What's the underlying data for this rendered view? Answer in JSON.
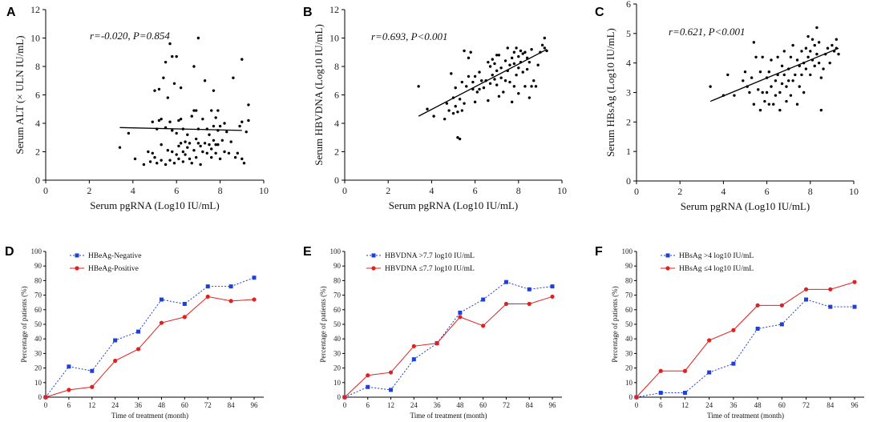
{
  "chart_data": [
    {
      "panel": "A",
      "type": "scatter",
      "xlabel": "Serum pgRNA (Log10 IU/mL)",
      "ylabel": "Serum ALT (× ULN IU/mL)",
      "xlim": [
        0,
        10
      ],
      "ylim": [
        0,
        12
      ],
      "xticks": [
        0,
        2,
        4,
        6,
        8,
        10
      ],
      "yticks": [
        0,
        2,
        4,
        6,
        8,
        10,
        12
      ],
      "annotation": {
        "r": "r=-0.020",
        "p": "P=0.854"
      },
      "fit": {
        "x": [
          3.4,
          9.0
        ],
        "y": [
          3.7,
          3.5
        ]
      },
      "points": [
        [
          3.4,
          2.3
        ],
        [
          3.8,
          3.3
        ],
        [
          4.1,
          1.5
        ],
        [
          4.5,
          1.1
        ],
        [
          4.7,
          2.0
        ],
        [
          4.8,
          1.3
        ],
        [
          4.9,
          1.9
        ],
        [
          4.9,
          4.1
        ],
        [
          5.0,
          6.3
        ],
        [
          5.0,
          1.6
        ],
        [
          5.1,
          3.6
        ],
        [
          5.1,
          1.2
        ],
        [
          5.2,
          4.2
        ],
        [
          5.2,
          6.4
        ],
        [
          5.3,
          2.5
        ],
        [
          5.3,
          1.4
        ],
        [
          5.3,
          4.3
        ],
        [
          5.4,
          7.2
        ],
        [
          5.5,
          8.3
        ],
        [
          5.5,
          3.7
        ],
        [
          5.5,
          1.1
        ],
        [
          5.6,
          5.8
        ],
        [
          5.6,
          2.1
        ],
        [
          5.7,
          9.6
        ],
        [
          5.7,
          4.1
        ],
        [
          5.7,
          1.4
        ],
        [
          5.8,
          8.7
        ],
        [
          5.8,
          3.5
        ],
        [
          5.8,
          2.0
        ],
        [
          5.9,
          6.8
        ],
        [
          5.9,
          1.2
        ],
        [
          6.0,
          8.7
        ],
        [
          6.0,
          3.3
        ],
        [
          6.0,
          1.8
        ],
        [
          6.1,
          4.2
        ],
        [
          6.1,
          2.4
        ],
        [
          6.1,
          1.5
        ],
        [
          6.2,
          6.5
        ],
        [
          6.2,
          4.3
        ],
        [
          6.2,
          2.6
        ],
        [
          6.3,
          3.6
        ],
        [
          6.3,
          2.0
        ],
        [
          6.3,
          1.3
        ],
        [
          6.4,
          2.7
        ],
        [
          6.4,
          1.8
        ],
        [
          6.5,
          3.2
        ],
        [
          6.5,
          2.3
        ],
        [
          6.6,
          1.5
        ],
        [
          6.6,
          2.6
        ],
        [
          6.7,
          4.5
        ],
        [
          6.7,
          1.2
        ],
        [
          6.8,
          4.9
        ],
        [
          6.8,
          8.0
        ],
        [
          6.8,
          2.1
        ],
        [
          6.9,
          2.9
        ],
        [
          6.9,
          1.6
        ],
        [
          6.9,
          4.9
        ],
        [
          7.0,
          10.0
        ],
        [
          7.0,
          3.6
        ],
        [
          7.0,
          2.6
        ],
        [
          7.1,
          2.4
        ],
        [
          7.1,
          1.1
        ],
        [
          7.2,
          4.3
        ],
        [
          7.2,
          2.0
        ],
        [
          7.3,
          7.0
        ],
        [
          7.3,
          2.6
        ],
        [
          7.4,
          3.6
        ],
        [
          7.4,
          1.9
        ],
        [
          7.5,
          2.5
        ],
        [
          7.5,
          3.2
        ],
        [
          7.6,
          4.9
        ],
        [
          7.6,
          2.2
        ],
        [
          7.6,
          1.6
        ],
        [
          7.7,
          6.3
        ],
        [
          7.7,
          3.8
        ],
        [
          7.7,
          2.8
        ],
        [
          7.8,
          4.4
        ],
        [
          7.8,
          2.5
        ],
        [
          7.8,
          1.9
        ],
        [
          7.9,
          3.5
        ],
        [
          7.9,
          4.9
        ],
        [
          7.9,
          2.5
        ],
        [
          8.0,
          1.5
        ],
        [
          8.0,
          3.8
        ],
        [
          8.1,
          2.8
        ],
        [
          8.2,
          4.0
        ],
        [
          8.2,
          2.0
        ],
        [
          8.3,
          3.4
        ],
        [
          8.4,
          1.9
        ],
        [
          8.5,
          2.7
        ],
        [
          8.6,
          7.2
        ],
        [
          8.7,
          1.6
        ],
        [
          8.8,
          1.9
        ],
        [
          8.9,
          3.8
        ],
        [
          9.0,
          4.1
        ],
        [
          9.0,
          8.5
        ],
        [
          9.0,
          1.5
        ],
        [
          9.1,
          1.2
        ],
        [
          9.2,
          3.4
        ],
        [
          9.3,
          5.3
        ],
        [
          9.3,
          4.2
        ]
      ]
    },
    {
      "panel": "B",
      "type": "scatter",
      "xlabel": "Serum pgRNA (Log10 IU/mL)",
      "ylabel": "Serum HBVDNA (Log10 IU/mL)",
      "xlim": [
        0,
        10
      ],
      "ylim": [
        0,
        12
      ],
      "xticks": [
        0,
        2,
        4,
        6,
        8,
        10
      ],
      "yticks": [
        0,
        2,
        4,
        6,
        8,
        10,
        12
      ],
      "annotation": {
        "r": "r=0.693",
        "p": "P<0.001"
      },
      "fit": {
        "x": [
          3.4,
          9.3
        ],
        "y": [
          4.5,
          9.2
        ]
      },
      "points": [
        [
          3.4,
          6.6
        ],
        [
          3.8,
          5.0
        ],
        [
          4.1,
          4.5
        ],
        [
          4.6,
          4.3
        ],
        [
          4.7,
          5.4
        ],
        [
          4.8,
          4.9
        ],
        [
          4.9,
          7.5
        ],
        [
          5.0,
          5.8
        ],
        [
          5.0,
          4.7
        ],
        [
          5.1,
          6.5
        ],
        [
          5.1,
          5.2
        ],
        [
          5.2,
          4.8
        ],
        [
          5.2,
          3.0
        ],
        [
          5.3,
          5.7
        ],
        [
          5.3,
          2.9
        ],
        [
          5.4,
          6.9
        ],
        [
          5.4,
          4.9
        ],
        [
          5.5,
          9.1
        ],
        [
          5.5,
          5.4
        ],
        [
          5.6,
          6.6
        ],
        [
          5.7,
          8.6
        ],
        [
          5.7,
          7.3
        ],
        [
          5.8,
          9.0
        ],
        [
          5.9,
          6.9
        ],
        [
          5.9,
          6.4
        ],
        [
          6.0,
          7.3
        ],
        [
          6.0,
          5.5
        ],
        [
          6.1,
          6.2
        ],
        [
          6.2,
          7.6
        ],
        [
          6.2,
          6.4
        ],
        [
          6.3,
          7.0
        ],
        [
          6.4,
          6.5
        ],
        [
          6.5,
          7.0
        ],
        [
          6.6,
          8.3
        ],
        [
          6.6,
          5.6
        ],
        [
          6.7,
          8.0
        ],
        [
          6.7,
          6.8
        ],
        [
          6.8,
          8.5
        ],
        [
          6.8,
          7.4
        ],
        [
          6.9,
          7.1
        ],
        [
          6.9,
          8.2
        ],
        [
          7.0,
          8.8
        ],
        [
          7.0,
          7.7
        ],
        [
          7.0,
          6.7
        ],
        [
          7.1,
          8.8
        ],
        [
          7.1,
          5.9
        ],
        [
          7.2,
          7.9
        ],
        [
          7.2,
          7.2
        ],
        [
          7.3,
          6.2
        ],
        [
          7.4,
          8.4
        ],
        [
          7.4,
          7.0
        ],
        [
          7.5,
          9.3
        ],
        [
          7.5,
          7.7
        ],
        [
          7.6,
          8.1
        ],
        [
          7.6,
          6.9
        ],
        [
          7.7,
          5.5
        ],
        [
          7.7,
          8.6
        ],
        [
          7.8,
          9.0
        ],
        [
          7.8,
          8.2
        ],
        [
          7.8,
          6.6
        ],
        [
          7.9,
          7.4
        ],
        [
          7.9,
          9.3
        ],
        [
          8.0,
          8.7
        ],
        [
          8.0,
          7.9
        ],
        [
          8.0,
          6.1
        ],
        [
          8.1,
          8.3
        ],
        [
          8.1,
          9.1
        ],
        [
          8.2,
          7.6
        ],
        [
          8.2,
          8.9
        ],
        [
          8.3,
          6.6
        ],
        [
          8.3,
          9.0
        ],
        [
          8.4,
          7.8
        ],
        [
          8.4,
          8.6
        ],
        [
          8.5,
          5.8
        ],
        [
          8.5,
          8.3
        ],
        [
          8.6,
          6.6
        ],
        [
          8.6,
          9.2
        ],
        [
          8.7,
          7.0
        ],
        [
          8.8,
          6.6
        ],
        [
          8.9,
          8.1
        ],
        [
          9.0,
          9.0
        ],
        [
          9.1,
          9.5
        ],
        [
          9.2,
          9.3
        ],
        [
          9.2,
          10.0
        ],
        [
          9.3,
          9.1
        ]
      ]
    },
    {
      "panel": "C",
      "type": "scatter",
      "xlabel": "Serum pgRNA (Log10 IU/mL)",
      "ylabel": "Serum HBsAg (Log10 IU/mL)",
      "xlim": [
        0,
        10
      ],
      "ylim": [
        0,
        6
      ],
      "xticks": [
        0,
        2,
        4,
        6,
        8,
        10
      ],
      "yticks": [
        0,
        1,
        2,
        3,
        4,
        5,
        6
      ],
      "annotation": {
        "r": "r=0.621",
        "p": "P<0.001"
      },
      "fit": {
        "x": [
          3.4,
          9.3
        ],
        "y": [
          2.7,
          4.5
        ]
      },
      "points": [
        [
          3.4,
          3.2
        ],
        [
          4.0,
          2.9
        ],
        [
          4.2,
          3.6
        ],
        [
          4.5,
          2.9
        ],
        [
          4.9,
          3.4
        ],
        [
          5.0,
          3.7
        ],
        [
          5.1,
          3.2
        ],
        [
          5.2,
          3.0
        ],
        [
          5.3,
          3.5
        ],
        [
          5.4,
          4.7
        ],
        [
          5.4,
          2.6
        ],
        [
          5.5,
          4.2
        ],
        [
          5.6,
          3.1
        ],
        [
          5.7,
          3.7
        ],
        [
          5.7,
          2.4
        ],
        [
          5.8,
          4.2
        ],
        [
          5.8,
          3.0
        ],
        [
          5.9,
          2.7
        ],
        [
          6.0,
          3.5
        ],
        [
          6.0,
          3.0
        ],
        [
          6.1,
          3.7
        ],
        [
          6.1,
          2.6
        ],
        [
          6.2,
          4.1
        ],
        [
          6.2,
          3.2
        ],
        [
          6.3,
          2.6
        ],
        [
          6.4,
          3.4
        ],
        [
          6.4,
          2.9
        ],
        [
          6.5,
          3.6
        ],
        [
          6.5,
          4.2
        ],
        [
          6.6,
          3.0
        ],
        [
          6.6,
          2.4
        ],
        [
          6.7,
          3.9
        ],
        [
          6.7,
          3.3
        ],
        [
          6.8,
          3.6
        ],
        [
          6.8,
          4.4
        ],
        [
          6.9,
          3.2
        ],
        [
          6.9,
          2.7
        ],
        [
          7.0,
          3.8
        ],
        [
          7.0,
          3.4
        ],
        [
          7.1,
          4.2
        ],
        [
          7.1,
          2.9
        ],
        [
          7.2,
          3.4
        ],
        [
          7.2,
          4.6
        ],
        [
          7.3,
          3.6
        ],
        [
          7.4,
          4.1
        ],
        [
          7.4,
          2.6
        ],
        [
          7.5,
          3.9
        ],
        [
          7.5,
          3.2
        ],
        [
          7.6,
          4.4
        ],
        [
          7.6,
          3.6
        ],
        [
          7.7,
          4.0
        ],
        [
          7.7,
          3.0
        ],
        [
          7.8,
          4.5
        ],
        [
          7.8,
          3.8
        ],
        [
          7.9,
          4.2
        ],
        [
          7.9,
          4.9
        ],
        [
          8.0,
          4.4
        ],
        [
          8.0,
          3.6
        ],
        [
          8.1,
          4.1
        ],
        [
          8.1,
          4.8
        ],
        [
          8.2,
          4.6
        ],
        [
          8.2,
          3.9
        ],
        [
          8.3,
          5.2
        ],
        [
          8.3,
          4.3
        ],
        [
          8.4,
          4.0
        ],
        [
          8.4,
          4.7
        ],
        [
          8.5,
          3.5
        ],
        [
          8.5,
          2.4
        ],
        [
          8.6,
          3.8
        ],
        [
          8.7,
          4.3
        ],
        [
          8.8,
          4.5
        ],
        [
          8.9,
          4.0
        ],
        [
          9.0,
          4.6
        ],
        [
          9.1,
          4.4
        ],
        [
          9.2,
          4.8
        ],
        [
          9.2,
          4.5
        ],
        [
          9.3,
          4.3
        ]
      ]
    },
    {
      "panel": "D",
      "type": "line",
      "xlabel": "Time of treatment (month)",
      "ylabel": "Percentage of patients (%)",
      "x": [
        0,
        6,
        12,
        24,
        36,
        48,
        60,
        72,
        84,
        96
      ],
      "ylim": [
        0,
        100
      ],
      "yticks": [
        0,
        10,
        20,
        30,
        40,
        50,
        60,
        70,
        80,
        90,
        100
      ],
      "series": [
        {
          "name": "HBeAg-Negative",
          "color": "#1f3fd6",
          "marker": "square",
          "dashed": true,
          "values": [
            0,
            21,
            18,
            39,
            45,
            67,
            64,
            76,
            76,
            82
          ]
        },
        {
          "name": "HBeAg-Positive",
          "color": "#e0211f",
          "marker": "circle",
          "dashed": false,
          "values": [
            0,
            5,
            7,
            25,
            33,
            51,
            55,
            69,
            66,
            67
          ]
        }
      ]
    },
    {
      "panel": "E",
      "type": "line",
      "xlabel": "Time of treatment (month)",
      "ylabel": "Percentage of patients (%)",
      "x": [
        0,
        6,
        12,
        24,
        36,
        48,
        60,
        72,
        84,
        96
      ],
      "ylim": [
        0,
        100
      ],
      "yticks": [
        0,
        10,
        20,
        30,
        40,
        50,
        60,
        70,
        80,
        90,
        100
      ],
      "series": [
        {
          "name": "HBVDNA >7.7 log10 IU/mL",
          "color": "#1f3fd6",
          "marker": "square",
          "dashed": true,
          "values": [
            0,
            7,
            5,
            26,
            37,
            58,
            67,
            79,
            74,
            76
          ]
        },
        {
          "name": "HBVDNA ≤7.7 log10 IU/mL",
          "color": "#e0211f",
          "marker": "circle",
          "dashed": false,
          "values": [
            0,
            15,
            17,
            35,
            37,
            55,
            49,
            64,
            64,
            69
          ]
        }
      ]
    },
    {
      "panel": "F",
      "type": "line",
      "xlabel": "Time of treatment (month)",
      "ylabel": "Percentage of patients (%)",
      "x": [
        0,
        6,
        12,
        24,
        36,
        48,
        60,
        72,
        84,
        96
      ],
      "ylim": [
        0,
        100
      ],
      "yticks": [
        0,
        10,
        20,
        30,
        40,
        50,
        60,
        70,
        80,
        90,
        100
      ],
      "series": [
        {
          "name": "HBsAg >4 log10 IU/mL",
          "color": "#1f3fd6",
          "marker": "square",
          "dashed": true,
          "values": [
            0,
            3,
            3,
            17,
            23,
            47,
            50,
            67,
            62,
            62
          ]
        },
        {
          "name": "HBsAg ≤4 log10 IU/mL",
          "color": "#e0211f",
          "marker": "circle",
          "dashed": false,
          "values": [
            0,
            18,
            18,
            39,
            46,
            63,
            63,
            74,
            74,
            79
          ]
        }
      ]
    }
  ]
}
